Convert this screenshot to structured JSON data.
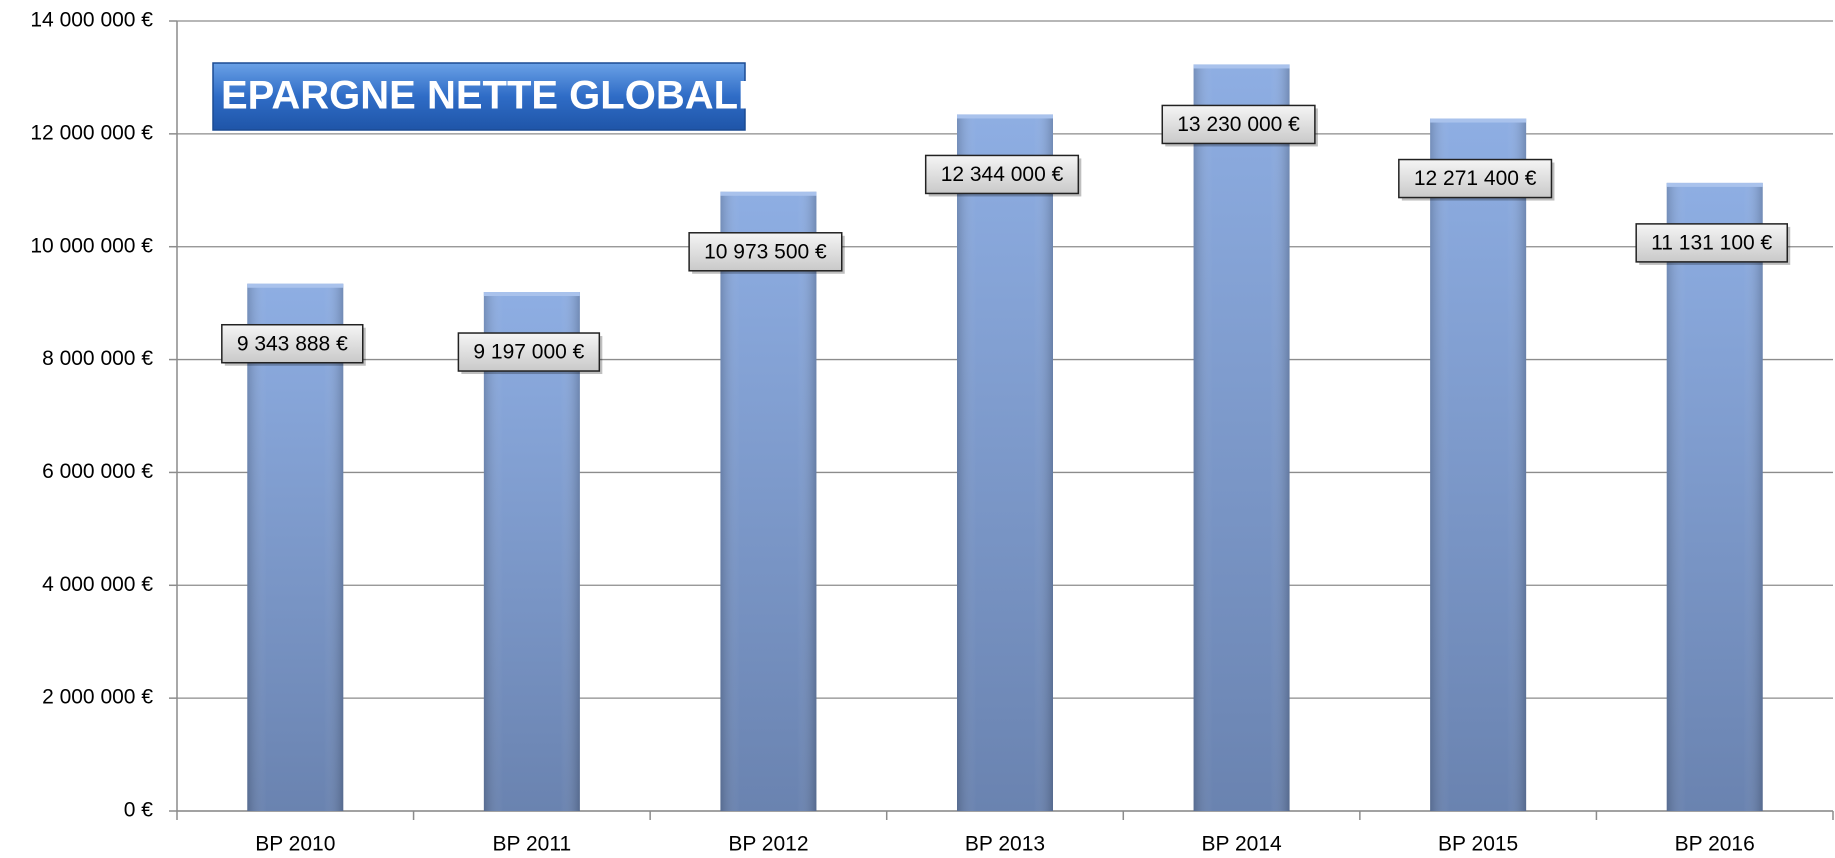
{
  "chart_data": {
    "type": "bar",
    "title": "EPARGNE NETTE GLOBALE",
    "categories": [
      "BP 2010",
      "BP 2011",
      "BP 2012",
      "BP 2013",
      "BP 2014",
      "BP 2015",
      "BP 2016"
    ],
    "values": [
      9343888,
      9197000,
      10973500,
      12344000,
      13230000,
      12271400,
      11131100
    ],
    "value_labels": [
      "9 343 888 €",
      "9 197 000 €",
      "10 973 500 €",
      "12 344 000 €",
      "13 230 000 €",
      "12 271 400 €",
      "11 131 100 €"
    ],
    "color": "#8aa9dc",
    "ylim": [
      0,
      14000000
    ],
    "yticks": [
      {
        "value": 0,
        "label": "0 €"
      },
      {
        "value": 2000000,
        "label": "2 000 000 €"
      },
      {
        "value": 4000000,
        "label": "4 000 000 €"
      },
      {
        "value": 6000000,
        "label": "6 000 000 €"
      },
      {
        "value": 8000000,
        "label": "8 000 000 €"
      },
      {
        "value": 10000000,
        "label": "10 000 000 €"
      },
      {
        "value": 12000000,
        "label": "12 000 000 €"
      },
      {
        "value": 14000000,
        "label": "14 000 000 €"
      }
    ],
    "grid": true
  }
}
